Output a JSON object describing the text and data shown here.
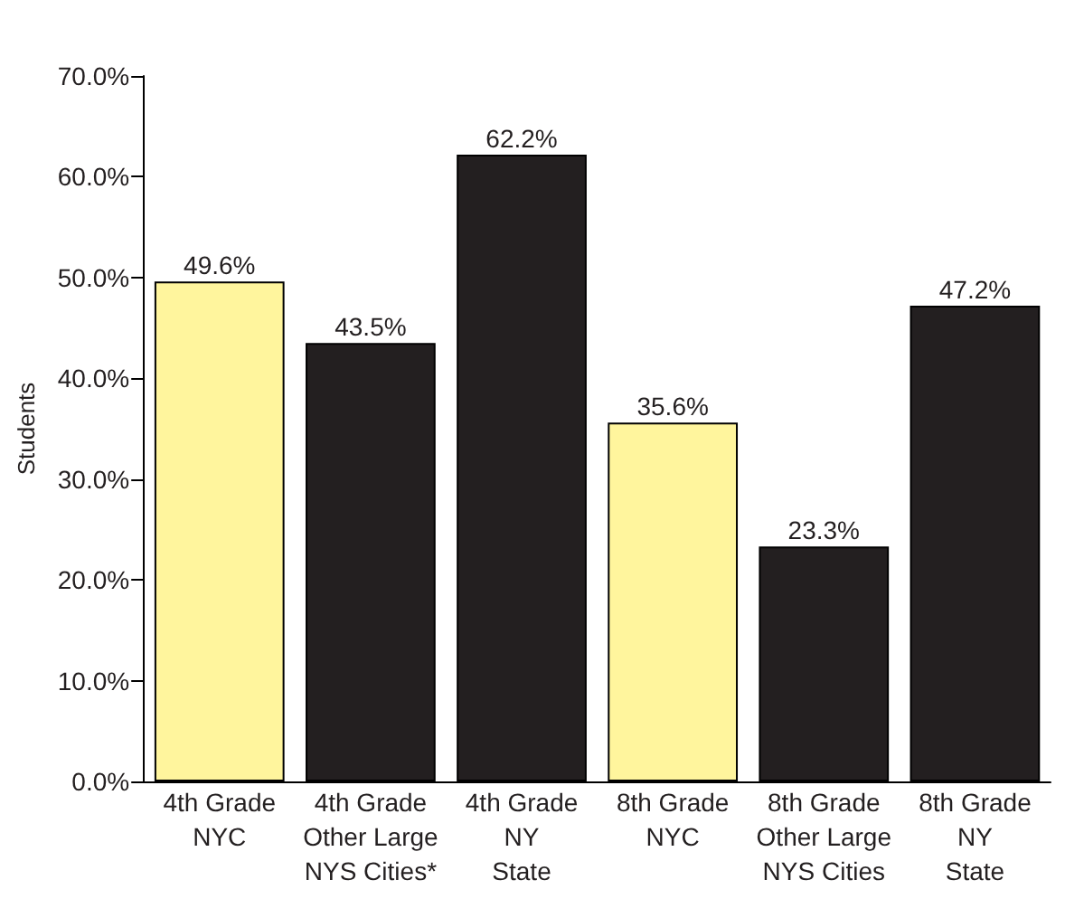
{
  "chart_data": {
    "type": "bar",
    "ylabel": "Students",
    "categories": [
      "4th Grade\nNYC",
      "4th Grade\nOther Large\nNYS Cities*",
      "4th Grade\nNY\nState",
      "8th Grade\nNYC",
      "8th Grade\nOther Large\nNYS Cities",
      "8th Grade\nNY\nState"
    ],
    "values": [
      49.6,
      43.5,
      62.2,
      35.6,
      23.3,
      47.2
    ],
    "colors": [
      "#fff59d",
      "#231f20",
      "#231f20",
      "#fff59d",
      "#231f20",
      "#231f20"
    ],
    "value_labels": [
      "49.6%",
      "43.5%",
      "62.2%",
      "35.6%",
      "23.3%",
      "47.2%"
    ],
    "ylim": [
      0,
      70
    ],
    "yticks": [
      {
        "value": 0,
        "label": "0.0%"
      },
      {
        "value": 10,
        "label": "10.0%"
      },
      {
        "value": 20,
        "label": "20.0%"
      },
      {
        "value": 30,
        "label": "30.0%"
      },
      {
        "value": 40,
        "label": "40.0%"
      },
      {
        "value": 50,
        "label": "50.0%"
      },
      {
        "value": 60,
        "label": "60.0%"
      },
      {
        "value": 70,
        "label": "70.0%"
      }
    ],
    "grid": false
  }
}
